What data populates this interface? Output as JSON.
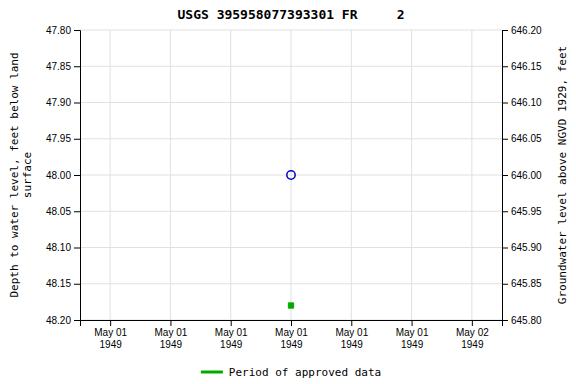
{
  "chart_data": {
    "type": "scatter",
    "title": "USGS 395958077393301 FR     2",
    "y_label": "Depth to water level, feet below land\nsurface",
    "y2_label": "Groundwater level above NGVD 1929, feet",
    "categories": [
      "May 01\n1949",
      "May 01\n1949",
      "May 01\n1949",
      "May 01\n1949",
      "May 01\n1949",
      "May 01\n1949",
      "May 02\n1949"
    ],
    "series": [
      {
        "color": "#0000cc",
        "marker": "circle-open",
        "values": [
          null,
          null,
          null,
          48.0,
          null,
          null,
          null
        ]
      },
      {
        "name": "Period of approved data",
        "color": "#00aa00",
        "marker": "square",
        "values": [
          null,
          null,
          null,
          48.18,
          null,
          null,
          null
        ]
      }
    ],
    "ylim": [
      48.2,
      47.8
    ],
    "yticks": [
      {
        "value": 47.8,
        "label": "47.80"
      },
      {
        "value": 47.85,
        "label": "47.85"
      },
      {
        "value": 47.9,
        "label": "47.90"
      },
      {
        "value": 47.95,
        "label": "47.95"
      },
      {
        "value": 48.0,
        "label": "48.00"
      },
      {
        "value": 48.05,
        "label": "48.05"
      },
      {
        "value": 48.1,
        "label": "48.10"
      },
      {
        "value": 48.15,
        "label": "48.15"
      },
      {
        "value": 48.2,
        "label": "48.20"
      }
    ],
    "y2lim": [
      645.8,
      646.2
    ],
    "y2ticks": [
      {
        "value": 645.8,
        "label": "645.80"
      },
      {
        "value": 645.85,
        "label": "645.85"
      },
      {
        "value": 645.9,
        "label": "645.90"
      },
      {
        "value": 645.95,
        "label": "645.95"
      },
      {
        "value": 646.0,
        "label": "646.00"
      },
      {
        "value": 646.05,
        "label": "646.05"
      },
      {
        "value": 646.1,
        "label": "646.10"
      },
      {
        "value": 646.15,
        "label": "646.15"
      },
      {
        "value": 646.2,
        "label": "646.20"
      }
    ],
    "grid": true,
    "legend": "bottom"
  }
}
